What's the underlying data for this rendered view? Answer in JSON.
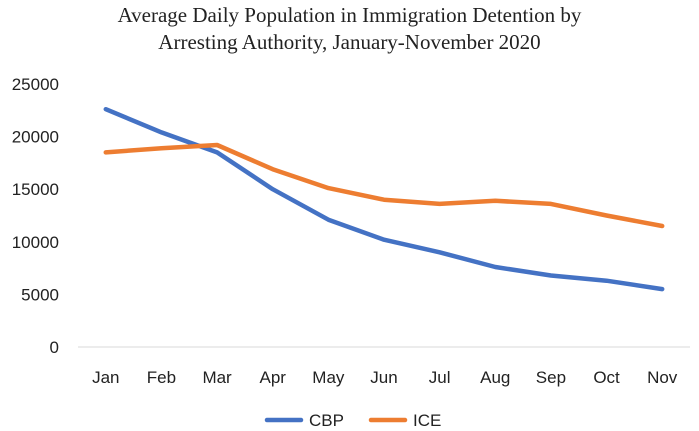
{
  "chart_data": {
    "type": "line",
    "title_lines": [
      "Average Daily Population in Immigration Detention by",
      "Arresting Authority, January-November 2020"
    ],
    "categories": [
      "Jan",
      "Feb",
      "Mar",
      "Apr",
      "May",
      "Jun",
      "Jul",
      "Aug",
      "Sep",
      "Oct",
      "Nov"
    ],
    "series": [
      {
        "name": "CBP",
        "color": "#4472C4",
        "values": [
          22600,
          20400,
          18500,
          15000,
          12100,
          10200,
          9000,
          7600,
          6800,
          6300,
          5500
        ]
      },
      {
        "name": "ICE",
        "color": "#ED7D31",
        "values": [
          18500,
          18900,
          19200,
          16900,
          15100,
          14000,
          13600,
          13900,
          13600,
          12500,
          11500
        ]
      }
    ],
    "ylim": [
      0,
      25000
    ],
    "yticks": [
      0,
      5000,
      10000,
      15000,
      20000,
      25000
    ],
    "ytick_labels": [
      "0",
      "5000",
      "10000",
      "15000",
      "20000",
      "25000"
    ],
    "grid": false,
    "legend_position": "bottom",
    "xlabel": "",
    "ylabel": ""
  }
}
